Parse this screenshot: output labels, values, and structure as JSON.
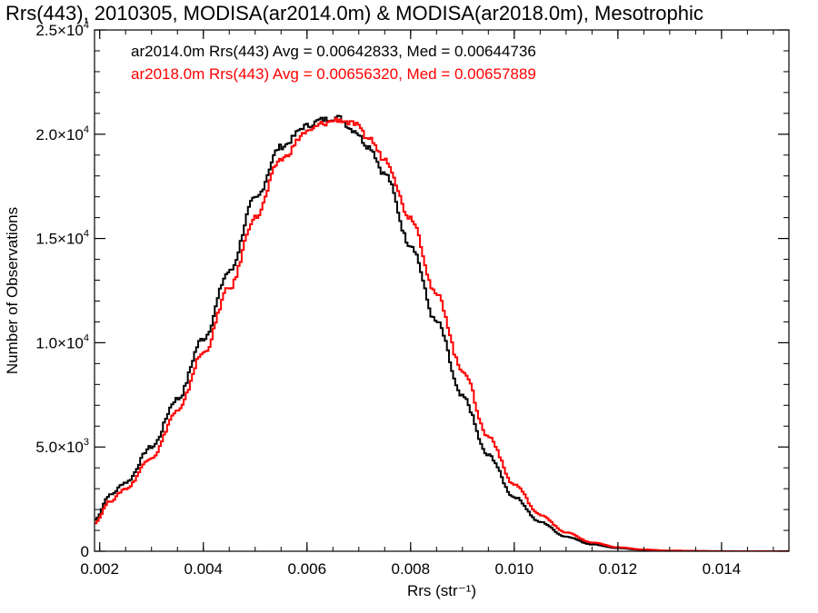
{
  "chart_data": {
    "type": "line",
    "title": "Rrs(443), 2010305, MODISA(ar2014.0m) & MODISA(ar2018.0m), Mesotrophic",
    "xlabel": "Rrs (str⁻¹)",
    "ylabel": "Number of Observations",
    "xlim": [
      0.0019,
      0.0153
    ],
    "ylim": [
      0,
      25000
    ],
    "x_ticks": [
      {
        "value": 0.002,
        "label": "0.002"
      },
      {
        "value": 0.004,
        "label": "0.004"
      },
      {
        "value": 0.006,
        "label": "0.006"
      },
      {
        "value": 0.008,
        "label": "0.008"
      },
      {
        "value": 0.01,
        "label": "0.010"
      },
      {
        "value": 0.012,
        "label": "0.012"
      },
      {
        "value": 0.014,
        "label": "0.014"
      }
    ],
    "y_ticks": [
      {
        "value": 0,
        "mantissa": "0",
        "exponent": ""
      },
      {
        "value": 5000,
        "mantissa": "5.0×10",
        "exponent": "3"
      },
      {
        "value": 10000,
        "mantissa": "1.0×10",
        "exponent": "4"
      },
      {
        "value": 15000,
        "mantissa": "1.5×10",
        "exponent": "4"
      },
      {
        "value": 20000,
        "mantissa": "2.0×10",
        "exponent": "4"
      },
      {
        "value": 25000,
        "mantissa": "2.5×10",
        "exponent": "4"
      }
    ],
    "series": [
      {
        "color": "#000000",
        "annotation": "ar2014.0m Rrs(443) Avg = 0.00642833, Med = 0.00644736",
        "x": [
          0.0019,
          0.0022,
          0.0025,
          0.003,
          0.0035,
          0.004,
          0.0045,
          0.005,
          0.0055,
          0.006,
          0.0063,
          0.0066,
          0.0069,
          0.0072,
          0.0075,
          0.008,
          0.0085,
          0.009,
          0.0095,
          0.01,
          0.0105,
          0.011,
          0.0115,
          0.012,
          0.0125,
          0.013,
          0.014,
          0.0153
        ],
        "y": [
          1500,
          2700,
          3300,
          5000,
          7300,
          10200,
          13400,
          16900,
          19400,
          20400,
          20700,
          20800,
          20200,
          19400,
          18100,
          14700,
          11000,
          7400,
          4600,
          2600,
          1400,
          700,
          330,
          150,
          60,
          20,
          0,
          0
        ]
      },
      {
        "color": "#ff0000",
        "annotation": "ar2018.0m Rrs(443) Avg = 0.00656320, Med = 0.00657889",
        "x": [
          0.0019,
          0.0022,
          0.0025,
          0.003,
          0.0035,
          0.004,
          0.0045,
          0.005,
          0.0055,
          0.006,
          0.0063,
          0.0066,
          0.0069,
          0.0072,
          0.0075,
          0.008,
          0.0085,
          0.009,
          0.0095,
          0.01,
          0.0105,
          0.011,
          0.0115,
          0.012,
          0.0125,
          0.013,
          0.014,
          0.0153
        ],
        "y": [
          1350,
          2400,
          3000,
          4500,
          6700,
          9500,
          12600,
          16000,
          18800,
          20100,
          20500,
          20700,
          20500,
          19800,
          18800,
          16000,
          12300,
          8700,
          5500,
          3200,
          1750,
          900,
          420,
          190,
          80,
          30,
          0,
          0
        ]
      }
    ]
  }
}
